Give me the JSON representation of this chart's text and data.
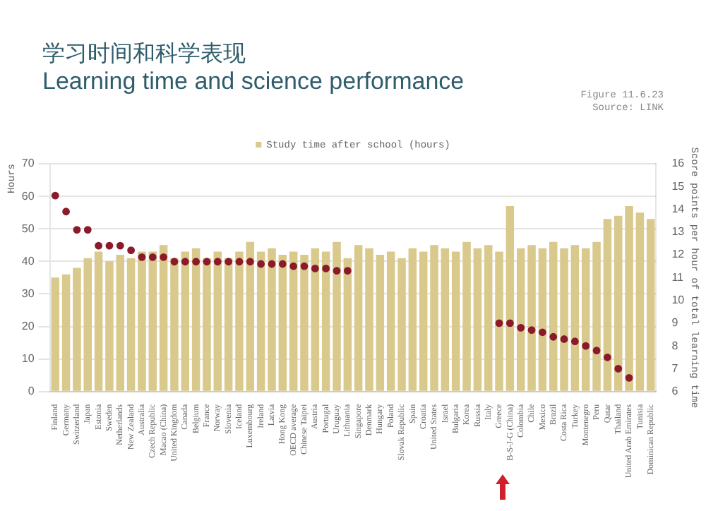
{
  "chart_data": {
    "type": "bar",
    "title": "学习时间和科学表现",
    "subtitle": "Learning time and science performance",
    "annotations": [
      "Figure 11.6.23",
      "Source: LINK"
    ],
    "ylabel": "Hours",
    "y2label": "Score points per hour of total learning time",
    "categories": [
      "Finland",
      "Germany",
      "Switzerland",
      "Japan",
      "Estonia",
      "Sweden",
      "Netherlands",
      "New Zealand",
      "Australia",
      "Czech Republic",
      "Macao (China)",
      "United Kingdom",
      "Canada",
      "Belgium",
      "France",
      "Norway",
      "Slovenia",
      "Iceland",
      "Luxembourg",
      "Ireland",
      "Latvia",
      "Hong Kong",
      "OECD average",
      "Chinese Taipei",
      "Austria",
      "Portugal",
      "Uruguay",
      "Lithuania",
      "Singapore",
      "Denmark",
      "Hungary",
      "Poland",
      "Slovak Republic",
      "Spain",
      "Croatia",
      "United States",
      "Israel",
      "Bulgaria",
      "Korea",
      "Russia",
      "Italy",
      "Greece",
      "B-S-J-G (China)",
      "Colombia",
      "Chile",
      "Mexico",
      "Brazil",
      "Costa Rica",
      "Turkey",
      "Montenegro",
      "Peru",
      "Qatar",
      "Thailand",
      "United Arab Emirates",
      "Tunisia",
      "Dominican Republic"
    ],
    "series": [
      {
        "name": "Study time after school (hours)",
        "color": "#d9c98c",
        "values": [
          35,
          36,
          38,
          41,
          43,
          40,
          42,
          41,
          43,
          43,
          45,
          41,
          43,
          44,
          41,
          43,
          41,
          43,
          46,
          43,
          44,
          42,
          43,
          42,
          44,
          43,
          46,
          41,
          45,
          44,
          42,
          43,
          41,
          44,
          43,
          45,
          44,
          43,
          46,
          44,
          45,
          43,
          57,
          44,
          45,
          44,
          46,
          44,
          45,
          44,
          46,
          53,
          54,
          57,
          55,
          53
        ]
      },
      {
        "type": "scatter",
        "axis": "y2",
        "color": "#8b1a2a",
        "values": [
          14.6,
          13.9,
          13.1,
          13.1,
          12.4,
          12.4,
          12.4,
          12.2,
          11.9,
          11.9,
          11.9,
          11.7,
          11.7,
          11.7,
          11.7,
          11.7,
          11.7,
          11.7,
          11.7,
          11.6,
          11.6,
          11.6,
          11.5,
          11.5,
          11.4,
          11.4,
          11.3,
          11.3,
          null,
          null,
          null,
          null,
          null,
          null,
          null,
          null,
          null,
          null,
          null,
          null,
          null,
          9.0,
          9.0,
          8.8,
          8.7,
          8.6,
          8.4,
          8.3,
          8.2,
          8.0,
          7.8,
          7.5,
          7.0,
          6.6,
          null,
          null
        ]
      }
    ],
    "ylim": [
      0,
      70
    ],
    "yticks": [
      0,
      10,
      20,
      30,
      40,
      50,
      60,
      70
    ],
    "y2lim": [
      6,
      16
    ],
    "y2ticks": [
      6,
      7,
      8,
      9,
      10,
      11,
      12,
      13,
      14,
      15,
      16
    ],
    "grid": "y",
    "legend": "top",
    "marker": "circle"
  }
}
